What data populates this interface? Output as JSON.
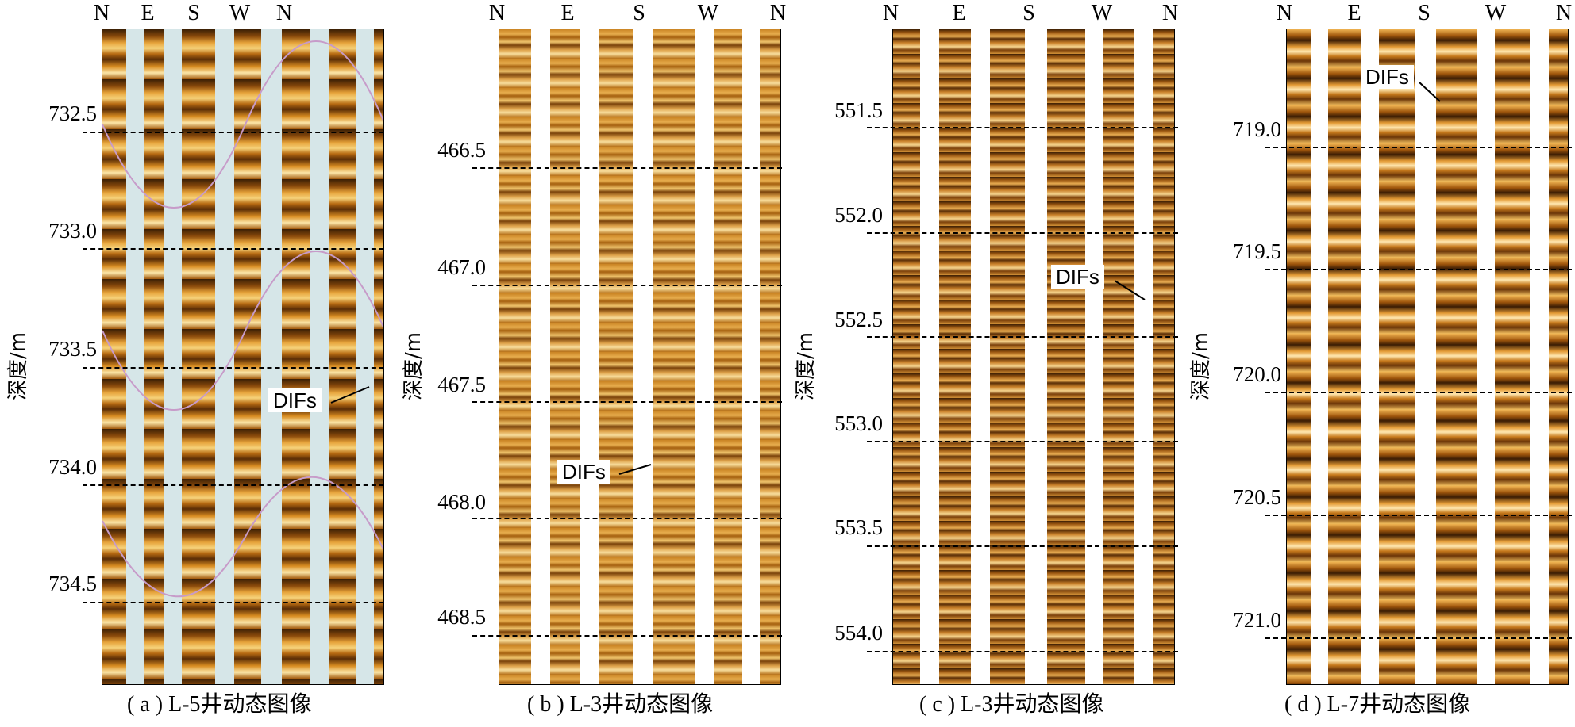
{
  "directions": [
    "N",
    "E",
    "S",
    "W",
    "N"
  ],
  "y_axis_label": "深度/m",
  "annotation_label": "DIFs",
  "panels": [
    {
      "id": "a",
      "caption": "( a ) L-5井动态图像",
      "depths": [
        "732.5",
        "733.0",
        "733.5",
        "734.0",
        "734.5"
      ]
    },
    {
      "id": "b",
      "caption": "( b ) L-3井动态图像",
      "depths": [
        "466.5",
        "467.0",
        "467.5",
        "468.0",
        "468.5"
      ]
    },
    {
      "id": "c",
      "caption": "( c ) L-3井动态图像",
      "depths": [
        "551.5",
        "552.0",
        "552.5",
        "553.0",
        "553.5",
        "554.0"
      ]
    },
    {
      "id": "d",
      "caption": "( d ) L-7井动态图像",
      "depths": [
        "719.0",
        "719.5",
        "720.0",
        "720.5",
        "721.0"
      ]
    }
  ],
  "colors": {
    "log_dark": "#3a1f05",
    "log_mid": "#a8610e",
    "log_light": "#f3c46a",
    "log_highlight": "#fff1c8",
    "gap_panel_a": "#d6e6e8",
    "gap_other": "#ffffff",
    "sine_trace": "#c79bc9"
  }
}
